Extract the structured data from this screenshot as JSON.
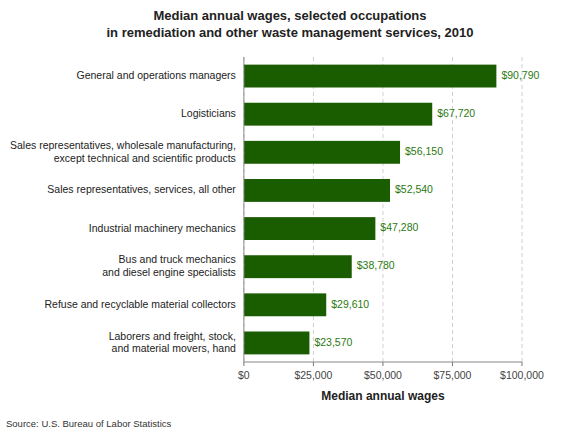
{
  "chart_data": {
    "type": "bar",
    "orientation": "horizontal",
    "title": "Median annual wages, selected occupations\nin remediation and other waste management services, 2010",
    "categories": [
      "General and operations managers",
      "Logisticians",
      "Sales representatives, wholesale manufacturing,\nexcept technical and scientific products",
      "Sales representatives, services, all other",
      "Industrial machinery mechanics",
      "Bus and truck mechanics\nand diesel engine specialists",
      "Refuse and recyclable material collectors",
      "Laborers and freight, stock,\nand material movers, hand"
    ],
    "values": [
      90790,
      67720,
      56150,
      52540,
      47280,
      38780,
      29610,
      23570
    ],
    "value_labels": [
      "$90,790",
      "$67,720",
      "$56,150",
      "$52,540",
      "$47,280",
      "$38,780",
      "$29,610",
      "$23,570"
    ],
    "data_labels": true,
    "color": "#1a5c00",
    "xlabel": "Median annual wages",
    "source": "Source: U.S. Bureau of Labor Statistics",
    "xlim": [
      0,
      100000
    ],
    "xticks": [
      {
        "value": 0,
        "label": "$0"
      },
      {
        "value": 25000,
        "label": "$25,000"
      },
      {
        "value": 50000,
        "label": "$50,000"
      },
      {
        "value": 75000,
        "label": "$75,000"
      },
      {
        "value": 100000,
        "label": "$100,000"
      }
    ],
    "grid": true
  }
}
